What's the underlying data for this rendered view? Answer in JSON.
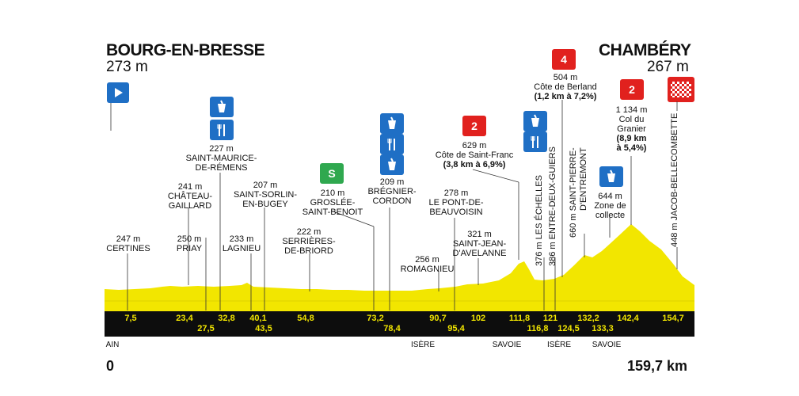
{
  "start": {
    "name": "BOURG-EN-BRESSE",
    "altitude": "273 m",
    "km": "0"
  },
  "finish": {
    "name": "CHAMBÉRY",
    "altitude": "267 m",
    "km": "159,7 km"
  },
  "profile_fill": "#f2e600",
  "km_markers_top": [
    "7,5",
    "23,4",
    "32,8",
    "40,1",
    "54,8",
    "73,2",
    "90,7",
    "102",
    "111,8",
    "121",
    "132,2",
    "142,4",
    "154,7"
  ],
  "km_markers_bottom": [
    "27,5",
    "43,5",
    "78,4",
    "95,4",
    "116,8",
    "124,5",
    "133,3"
  ],
  "regions": [
    "AIN",
    "ISÈRE",
    "SAVOIE",
    "ISÈRE",
    "SAVOIE"
  ],
  "points": [
    {
      "id": "certines",
      "lines": [
        "247 m",
        "CERTINES"
      ]
    },
    {
      "id": "priay",
      "lines": [
        "250 m",
        "PRIAY"
      ]
    },
    {
      "id": "chateau",
      "lines": [
        "241 m",
        "CHÂTEAU-",
        "GAILLARD"
      ]
    },
    {
      "id": "st-maurice",
      "lines": [
        "227 m",
        "SAINT-MAURICE-",
        "DE-RÉMENS"
      ]
    },
    {
      "id": "lagnieu",
      "lines": [
        "233 m",
        "LAGNIEU"
      ]
    },
    {
      "id": "st-sorlin",
      "lines": [
        "207 m",
        "SAINT-SORLIN-",
        "EN-BUGEY"
      ]
    },
    {
      "id": "serrieres",
      "lines": [
        "222 m",
        "SERRIÈRES-",
        "DE-BRIORD"
      ]
    },
    {
      "id": "groslee",
      "lines": [
        "210 m",
        "GROSLÉE-",
        "SAINT-BENOIT"
      ]
    },
    {
      "id": "bregnier",
      "lines": [
        "209 m",
        "BRÉGNIER-",
        "CORDON"
      ]
    },
    {
      "id": "romagnieu",
      "lines": [
        "256 m",
        "ROMAGNIEU"
      ]
    },
    {
      "id": "pont",
      "lines": [
        "278 m",
        "LE PONT-DE-",
        "BEAUVOISIN"
      ]
    },
    {
      "id": "st-jean",
      "lines": [
        "321 m",
        "SAINT-JEAN-",
        "D'AVELANNE"
      ]
    },
    {
      "id": "saint-franc",
      "lines": [
        "629 m",
        "Côte de Saint-Franc"
      ],
      "bold": "(3,8 km à 6,9%)"
    },
    {
      "id": "berland",
      "lines": [
        "504 m",
        "Côte de Berland"
      ],
      "bold": "(1,2 km à 7,2%)"
    },
    {
      "id": "granier",
      "lines": [
        "1 134 m",
        "Col du",
        "Granier"
      ],
      "bold": "(8,9 km",
      "bold2": "à 5,4%)"
    },
    {
      "id": "collecte",
      "lines": [
        "644 m",
        "Zone de",
        "collecte"
      ]
    }
  ],
  "vertical_labels": [
    "376 m LES ÉCHELLES",
    "386 m ENTRE-DEUX-GUIERS",
    "660 m SAINT-PIERRE-",
    "D'ENTREMONT",
    "448 m JACOB-BELLECOMBETTE"
  ],
  "badges": {
    "sprint": "S",
    "cat4": "4",
    "cat2_a": "2",
    "cat2_b": "2"
  },
  "icons": [
    "start-flag-icon",
    "feed-zone-icon",
    "refreshment-icon",
    "finish-checkered-icon"
  ]
}
